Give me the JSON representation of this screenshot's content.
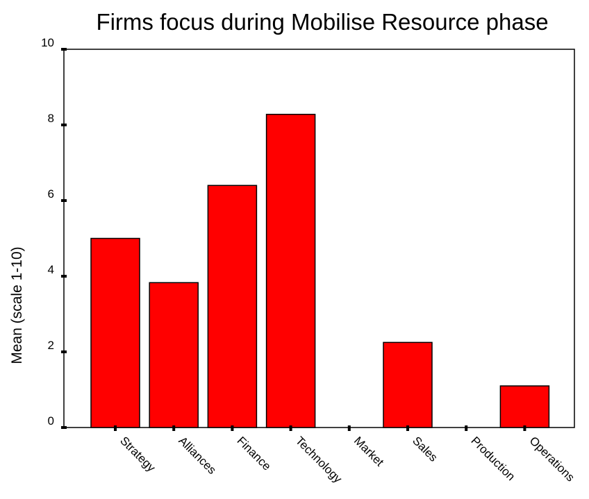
{
  "chart_data": {
    "type": "bar",
    "title": "Firms focus during Mobilise Resource phase",
    "xlabel": "",
    "ylabel": "Mean (scale 1-10)",
    "ylim": [
      0,
      10
    ],
    "yticks": [
      0,
      2,
      4,
      6,
      8,
      10
    ],
    "categories": [
      "Strategy",
      "Alliances",
      "Finance",
      "Technology",
      "Market",
      "Sales",
      "Production",
      "Operations"
    ],
    "values": [
      5.0,
      3.83,
      6.4,
      8.28,
      0,
      2.25,
      0,
      1.1
    ],
    "bar_color": "#ff0000",
    "grid": false,
    "legend": "none"
  }
}
